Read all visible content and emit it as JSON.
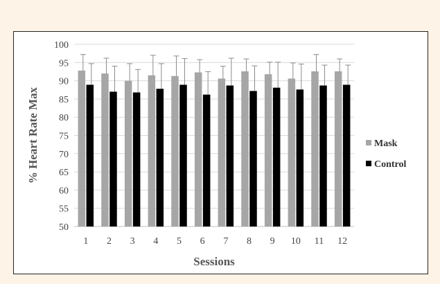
{
  "chart_data": {
    "type": "bar",
    "title": "",
    "xlabel": "Sessions",
    "ylabel": "% Heart Rate Max",
    "ylim": [
      50,
      100
    ],
    "yticks": [
      50,
      55,
      60,
      65,
      70,
      75,
      80,
      85,
      90,
      95,
      100
    ],
    "grid": true,
    "legend_position": "right",
    "categories": [
      "1",
      "2",
      "3",
      "4",
      "5",
      "6",
      "7",
      "8",
      "9",
      "10",
      "11",
      "12"
    ],
    "series": [
      {
        "name": "Mask",
        "color": "#a6a6a6",
        "values": [
          92.8,
          92.0,
          90.0,
          91.5,
          91.3,
          92.3,
          90.6,
          92.6,
          91.8,
          90.6,
          92.6,
          92.6
        ],
        "errors": [
          4.4,
          4.2,
          4.7,
          5.5,
          5.5,
          3.5,
          3.4,
          3.4,
          3.3,
          4.3,
          4.6,
          3.4
        ]
      },
      {
        "name": "Control",
        "color": "#000000",
        "values": [
          88.9,
          87.0,
          86.8,
          87.8,
          88.9,
          86.2,
          88.7,
          87.2,
          88.1,
          87.6,
          88.7,
          88.9
        ],
        "errors": [
          5.8,
          7.0,
          6.3,
          6.9,
          7.2,
          6.3,
          7.5,
          6.9,
          7.0,
          7.0,
          5.6,
          5.4
        ]
      }
    ]
  }
}
